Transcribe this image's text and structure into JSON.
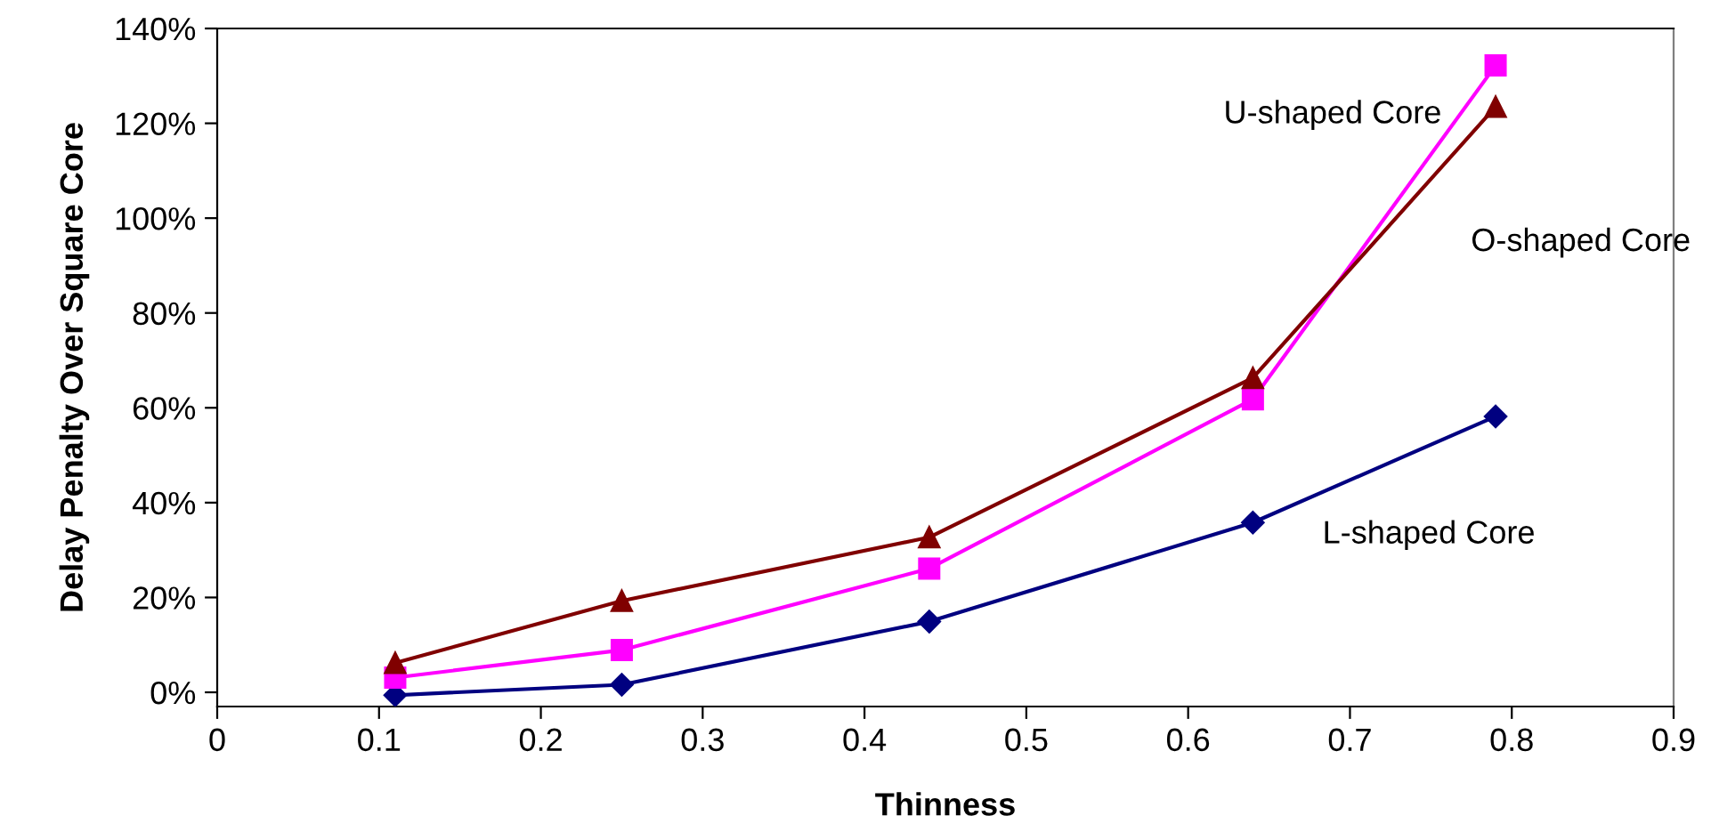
{
  "chart_data": {
    "type": "line",
    "xlabel": "Thinness",
    "ylabel": "Delay Penalty Over Square Core",
    "x": [
      0.11,
      0.25,
      0.44,
      0.64,
      0.79
    ],
    "series": [
      {
        "name": "L-shaped Core",
        "color": "#000080",
        "marker": "diamond",
        "values": [
          -0.6,
          1.6,
          14.9,
          35.8,
          58.2
        ]
      },
      {
        "name": "U-shaped Core",
        "color": "#ff00ff",
        "marker": "square",
        "values": [
          3.1,
          8.9,
          26.1,
          61.8,
          132.2
        ]
      },
      {
        "name": "O-shaped Core",
        "color": "#800000",
        "marker": "triangle",
        "values": [
          6.2,
          19.3,
          32.7,
          66.3,
          123.5
        ]
      }
    ],
    "xlim": [
      0,
      0.9
    ],
    "xticks": [
      0,
      0.1,
      0.2,
      0.3,
      0.4,
      0.5,
      0.6,
      0.7,
      0.8,
      0.9
    ],
    "ylim": [
      -3,
      140
    ],
    "yticks": [
      {
        "value": 0,
        "label": "0%"
      },
      {
        "value": 20,
        "label": "20%"
      },
      {
        "value": 40,
        "label": "40%"
      },
      {
        "value": 60,
        "label": "60%"
      },
      {
        "value": 80,
        "label": "80%"
      },
      {
        "value": 100,
        "label": "100%"
      },
      {
        "value": 120,
        "label": "120%"
      },
      {
        "value": 140,
        "label": "140%"
      }
    ],
    "grid": false,
    "legend": false,
    "line_style": "solid"
  }
}
